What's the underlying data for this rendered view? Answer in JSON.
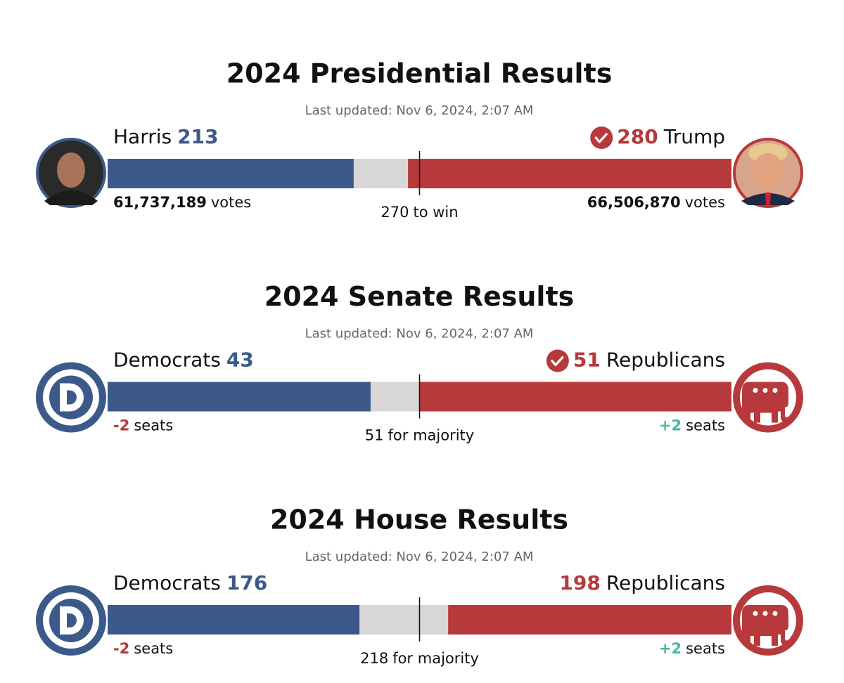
{
  "sections": [
    {
      "title": "2024 Presidential Results",
      "updated": "Last updated: Nov 6, 2024, 2:07 AM",
      "icon": "photo",
      "left": {
        "name": "Harris",
        "value": 213,
        "stat": "61,737,189",
        "stat_unit": "votes",
        "stat_style": "bold",
        "called": false
      },
      "right": {
        "name": "Trump",
        "value": 280,
        "stat": "66,506,870",
        "stat_unit": "votes",
        "stat_style": "bold",
        "called": true
      },
      "threshold": 270,
      "threshold_label": "to win"
    },
    {
      "title": "2024 Senate Results",
      "updated": "Last updated: Nov 6, 2024, 2:07 AM",
      "icon": "party",
      "left": {
        "name": "Democrats",
        "value": 43,
        "stat": "-2",
        "stat_unit": "seats",
        "stat_style": "loss",
        "called": false
      },
      "right": {
        "name": "Republicans",
        "value": 51,
        "stat": "+2",
        "stat_unit": "seats",
        "stat_style": "gain",
        "called": true
      },
      "threshold": 51,
      "threshold_label": "for majority"
    },
    {
      "title": "2024 House Results",
      "updated": "Last updated: Nov 6, 2024, 2:07 AM",
      "icon": "party",
      "left": {
        "name": "Democrats",
        "value": 176,
        "stat": "-2",
        "stat_unit": "seats",
        "stat_style": "loss",
        "called": false
      },
      "right": {
        "name": "Republicans",
        "value": 198,
        "stat": "+2",
        "stat_unit": "seats",
        "stat_style": "gain",
        "called": false
      },
      "threshold": 218,
      "threshold_label": "for majority"
    }
  ]
}
